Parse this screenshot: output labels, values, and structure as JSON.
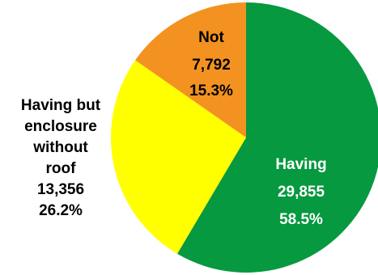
{
  "chart_data": {
    "type": "pie",
    "slices": [
      {
        "name": "Having",
        "count": "29,855",
        "percent_label": "58.5%",
        "value": 58.5,
        "color": "#06993f",
        "label_color": "#ffffff"
      },
      {
        "name": "Having but enclosure without roof",
        "name_lines": [
          "Having but",
          "enclosure",
          "without",
          "roof"
        ],
        "count": "13,356",
        "percent_label": "26.2%",
        "value": 26.2,
        "color": "#ffff00",
        "label_color": "#000000"
      },
      {
        "name": "Not",
        "count": "7,792",
        "percent_label": "15.3%",
        "value": 15.3,
        "color": "#f39221",
        "label_color": "#000000"
      }
    ],
    "start_angle_deg": 0,
    "direction": "clockwise"
  }
}
